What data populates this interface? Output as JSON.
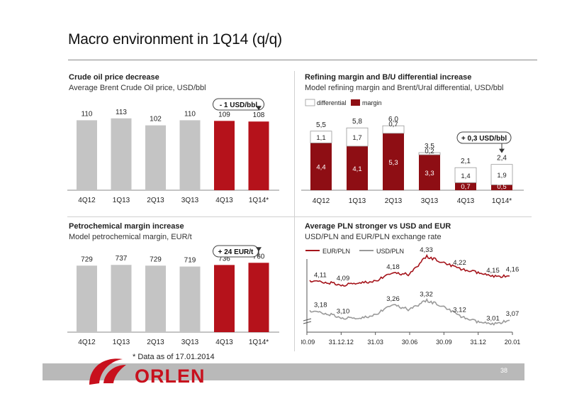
{
  "header": {
    "title": "Macro environment in 1Q14 (q/q)"
  },
  "footer": {
    "note": "* Data as of 17.01.2014",
    "page": "38",
    "logo_text": "ORLEN"
  },
  "colors": {
    "grey": "#c4c4c4",
    "red": "#b5121b",
    "dark_red": "#8e0e14",
    "line_red": "#a5141b",
    "line_grey": "#9a9a9a"
  },
  "panels": {
    "crude": {
      "title": "Crude oil price decrease",
      "subtitle": "Average Brent Crude Oil price, USD/bbl",
      "callout": "- 1 USD/bbl"
    },
    "refining": {
      "title": "Refining margin and B/U differential increase",
      "subtitle": "Model refining margin and Brent/Ural differential, USD/bbl",
      "callout": "+ 0,3 USD/bbl"
    },
    "petro": {
      "title": "Petrochemical margin increase",
      "subtitle": "Model petrochemical margin, EUR/t",
      "callout": "+ 24 EUR/t"
    },
    "fx": {
      "title": "Average PLN stronger vs USD and EUR",
      "subtitle": "USD/PLN and EUR/PLN exchange rate"
    }
  },
  "chart_data": [
    {
      "id": "crude",
      "type": "bar",
      "title": "Crude oil price decrease",
      "subtitle": "Average Brent Crude Oil price, USD/bbl",
      "categories": [
        "4Q12",
        "1Q13",
        "2Q13",
        "3Q13",
        "4Q13",
        "1Q14*"
      ],
      "values": [
        110,
        113,
        102,
        110,
        109,
        108
      ],
      "labels": [
        "110",
        "113",
        "102",
        "110",
        "109",
        "108"
      ],
      "highlight": [
        false,
        false,
        false,
        false,
        true,
        true
      ],
      "ylim": [
        0,
        125
      ],
      "annotation": "- 1 USD/bbl"
    },
    {
      "id": "refining",
      "type": "bar",
      "stacked": true,
      "title": "Refining margin and B/U differential increase",
      "subtitle": "Model refining margin and Brent/Ural differential, USD/bbl",
      "categories": [
        "4Q12",
        "1Q13",
        "2Q13",
        "3Q13",
        "4Q13",
        "1Q14*"
      ],
      "series": [
        {
          "name": "margin",
          "values": [
            4.4,
            4.1,
            5.3,
            3.3,
            0.7,
            0.5
          ],
          "labels": [
            "4,4",
            "4,1",
            "5,3",
            "3,3",
            "0,7",
            "0,5"
          ]
        },
        {
          "name": "differential",
          "values": [
            1.1,
            1.7,
            0.7,
            0.2,
            1.4,
            1.9
          ],
          "labels": [
            "1,1",
            "1,7",
            "0,7",
            "0,2",
            "1,4",
            "1,9"
          ]
        }
      ],
      "totals": [
        "5,5",
        "5,8",
        "6,0",
        "3,5",
        "2,1",
        "2,4"
      ],
      "legend": [
        "differential",
        "margin"
      ],
      "legend_position": "top-left",
      "ylim": [
        0,
        7.4
      ],
      "annotation": "+ 0,3 USD/bbl"
    },
    {
      "id": "petro",
      "type": "bar",
      "title": "Petrochemical margin increase",
      "subtitle": "Model petrochemical margin, EUR/t",
      "categories": [
        "4Q12",
        "1Q13",
        "2Q13",
        "3Q13",
        "4Q13",
        "1Q14*"
      ],
      "values": [
        729,
        737,
        729,
        719,
        736,
        760
      ],
      "labels": [
        "729",
        "737",
        "729",
        "719",
        "736",
        "760"
      ],
      "highlight": [
        false,
        false,
        false,
        false,
        true,
        true
      ],
      "ylim": [
        0,
        840
      ],
      "annotation": "+ 24 EUR/t"
    },
    {
      "id": "fx",
      "type": "line",
      "title": "Average PLN stronger vs USD and EUR",
      "subtitle": "USD/PLN and EUR/PLN exchange rate",
      "x_ticks": [
        "30.09",
        "31.12.12",
        "31.03",
        "30.06",
        "30.09",
        "31.12",
        "20.01"
      ],
      "series": [
        {
          "name": "EUR/PLN",
          "key_points": [
            4.11,
            4.1,
            4.08,
            4.09,
            4.12,
            4.18,
            4.17,
            4.33,
            4.28,
            4.22,
            4.19,
            4.15,
            4.16
          ],
          "labels": [
            "4,11",
            "4,09",
            "4,18",
            "4,33",
            "4,22",
            "4,15",
            "4,16"
          ]
        },
        {
          "name": "USD/PLN",
          "key_points": [
            3.18,
            3.15,
            3.1,
            3.08,
            3.15,
            3.26,
            3.2,
            3.32,
            3.25,
            3.12,
            3.05,
            3.01,
            3.07
          ],
          "labels": [
            "3,18",
            "3,10",
            "3,26",
            "3,32",
            "3,12",
            "3,01",
            "3,07"
          ]
        }
      ],
      "legend": [
        "EUR/PLN",
        "USD/PLN"
      ],
      "legend_position": "top-left",
      "y_axis_break": true
    }
  ]
}
